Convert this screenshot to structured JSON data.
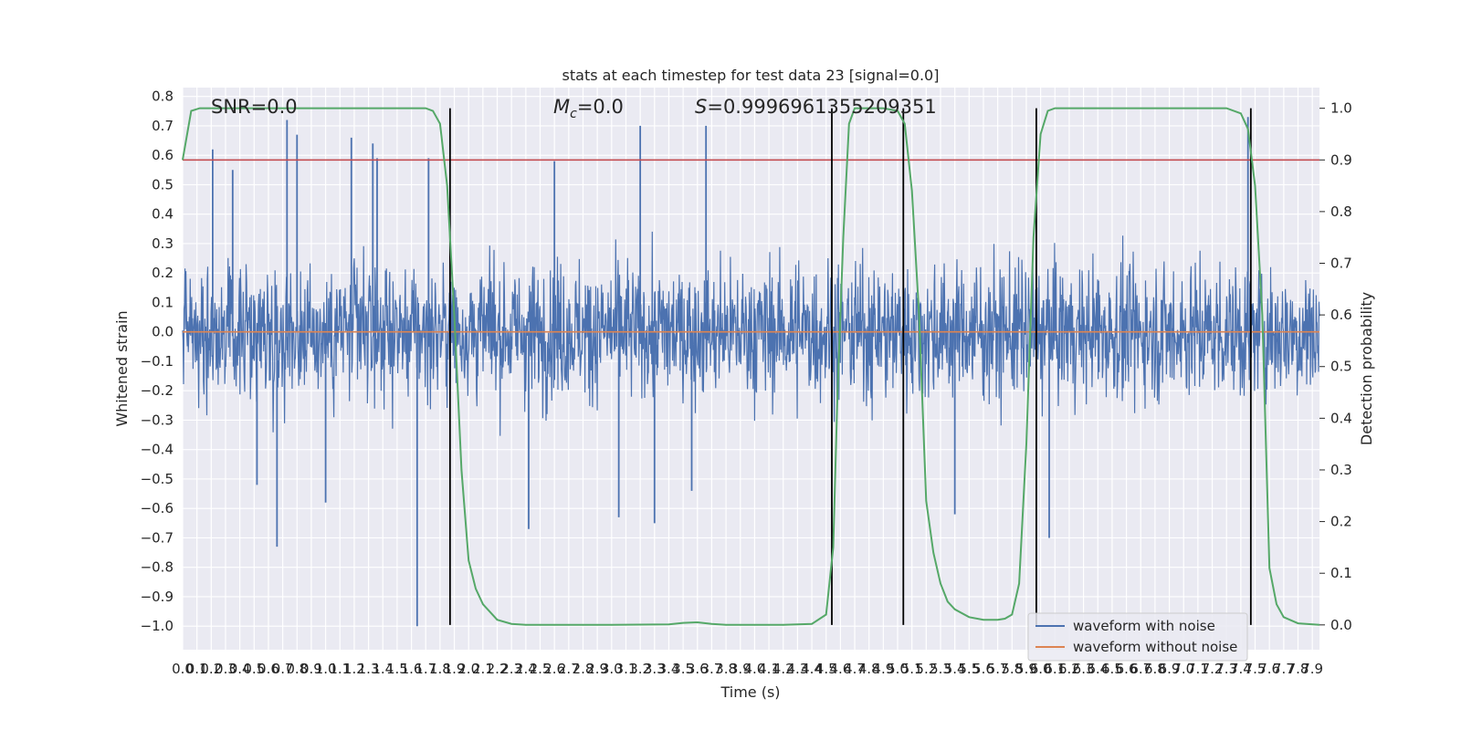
{
  "chart_data": {
    "type": "line",
    "title": "stats at each timestep for test data 23 [signal=0.0]",
    "xlabel": "Time (s)",
    "ylabel_left": "Whitened strain",
    "ylabel_right": "Detection probability",
    "xlim": [
      0.0,
      7.95
    ],
    "ylim_left": [
      -1.08,
      0.83
    ],
    "ylim_right": [
      -0.048,
      1.04
    ],
    "x_ticks": [
      "0.0",
      "0.1",
      "0.2",
      "0.3",
      "0.4",
      "0.5",
      "0.6",
      "0.7",
      "0.8",
      "0.9",
      "1.0",
      "1.1",
      "1.2",
      "1.3",
      "1.4",
      "1.5",
      "1.6",
      "1.7",
      "1.8",
      "1.9",
      "2.0",
      "2.1",
      "2.2",
      "2.3",
      "2.4",
      "2.5",
      "2.6",
      "2.7",
      "2.8",
      "2.9",
      "3.0",
      "3.1",
      "3.2",
      "3.3",
      "3.4",
      "3.5",
      "3.6",
      "3.7",
      "3.8",
      "3.9",
      "4.0",
      "4.1",
      "4.2",
      "4.3",
      "4.4",
      "4.5",
      "4.6",
      "4.7",
      "4.8",
      "4.9",
      "5.0",
      "5.1",
      "5.2",
      "5.3",
      "5.4",
      "5.5",
      "5.6",
      "5.7",
      "5.8",
      "5.9",
      "6.0",
      "6.1",
      "6.2",
      "6.3",
      "6.4",
      "6.5",
      "6.6",
      "6.7",
      "6.8",
      "6.9",
      "7.0",
      "7.1",
      "7.2",
      "7.3",
      "7.4",
      "7.5",
      "7.6",
      "7.7",
      "7.8",
      "7.9"
    ],
    "y_ticks_left": [
      "0.8",
      "0.7",
      "0.6",
      "0.5",
      "0.4",
      "0.3",
      "0.2",
      "0.1",
      "0.0",
      "−0.1",
      "−0.2",
      "−0.3",
      "−0.4",
      "−0.5",
      "−0.6",
      "−0.7",
      "−0.8",
      "−0.9",
      "−1.0"
    ],
    "y_ticks_right": [
      "1.0",
      "0.9",
      "0.8",
      "0.7",
      "0.6",
      "0.5",
      "0.4",
      "0.3",
      "0.2",
      "0.1",
      "0.0"
    ],
    "annotations": {
      "snr": "SNR=0.0",
      "mc_symbol": "M",
      "mc_subscript": "c",
      "mc_value": "=0.0",
      "s_symbol": "S",
      "s_value": "=0.9996961355209351"
    },
    "series": [
      {
        "name": "waveform with noise",
        "color": "#4c72b0",
        "note_values": "dense noise, roughly within ±0.45, extreme spikes listed below",
        "spikes": [
          {
            "x": 0.21,
            "y": 0.62
          },
          {
            "x": 0.35,
            "y": 0.55
          },
          {
            "x": 0.52,
            "y": -0.52
          },
          {
            "x": 0.66,
            "y": -0.73
          },
          {
            "x": 0.73,
            "y": 0.72
          },
          {
            "x": 0.8,
            "y": 0.67
          },
          {
            "x": 1.0,
            "y": -0.58
          },
          {
            "x": 1.18,
            "y": 0.66
          },
          {
            "x": 1.33,
            "y": 0.64
          },
          {
            "x": 1.36,
            "y": 0.59
          },
          {
            "x": 1.64,
            "y": -1.0
          },
          {
            "x": 1.72,
            "y": 0.59
          },
          {
            "x": 2.42,
            "y": -0.67
          },
          {
            "x": 2.6,
            "y": 0.58
          },
          {
            "x": 3.05,
            "y": -0.63
          },
          {
            "x": 3.2,
            "y": 0.7
          },
          {
            "x": 3.3,
            "y": -0.65
          },
          {
            "x": 3.56,
            "y": -0.54
          },
          {
            "x": 3.66,
            "y": 0.7
          },
          {
            "x": 6.06,
            "y": -0.7
          },
          {
            "x": 5.4,
            "y": -0.62
          },
          {
            "x": 7.45,
            "y": 0.73
          }
        ]
      },
      {
        "name": "waveform without noise",
        "color": "#dd8452",
        "x": [
          0.0,
          7.95
        ],
        "y": [
          0.0,
          0.0
        ]
      },
      {
        "name": "detection probability",
        "axis": "right",
        "color": "#55a868",
        "x": [
          0.0,
          0.06,
          0.12,
          0.2,
          0.4,
          1.0,
          1.6,
          1.7,
          1.75,
          1.8,
          1.85,
          1.9,
          1.95,
          2.0,
          2.05,
          2.1,
          2.15,
          2.2,
          2.3,
          2.4,
          2.6,
          3.0,
          3.4,
          3.5,
          3.6,
          3.7,
          3.8,
          4.2,
          4.4,
          4.5,
          4.55,
          4.58,
          4.62,
          4.66,
          4.7,
          4.8,
          4.9,
          5.0,
          5.05,
          5.1,
          5.15,
          5.2,
          5.25,
          5.3,
          5.35,
          5.4,
          5.5,
          5.6,
          5.7,
          5.75,
          5.8,
          5.85,
          5.9,
          5.95,
          6.0,
          6.05,
          6.1,
          6.2,
          6.5,
          7.0,
          7.3,
          7.4,
          7.45,
          7.5,
          7.55,
          7.6,
          7.65,
          7.7,
          7.8,
          7.95
        ],
        "y": [
          0.9,
          0.995,
          1.0,
          1.0,
          1.0,
          1.0,
          1.0,
          1.0,
          0.995,
          0.97,
          0.85,
          0.6,
          0.3,
          0.125,
          0.07,
          0.04,
          0.025,
          0.01,
          0.002,
          0.0,
          0.0,
          0.0,
          0.001,
          0.004,
          0.005,
          0.002,
          0.0,
          0.0,
          0.002,
          0.02,
          0.15,
          0.45,
          0.75,
          0.97,
          1.0,
          1.0,
          1.0,
          0.995,
          0.97,
          0.84,
          0.6,
          0.24,
          0.14,
          0.08,
          0.045,
          0.03,
          0.015,
          0.01,
          0.01,
          0.012,
          0.02,
          0.08,
          0.35,
          0.75,
          0.95,
          0.995,
          1.0,
          1.0,
          1.0,
          1.0,
          1.0,
          0.99,
          0.96,
          0.85,
          0.6,
          0.11,
          0.04,
          0.015,
          0.003,
          0.0
        ]
      }
    ],
    "threshold": {
      "axis": "right",
      "y": 0.9,
      "color": "#c44e52"
    },
    "vertical_lines": [
      1.87,
      4.54,
      5.04,
      5.97,
      7.47
    ],
    "legend": {
      "placement": "lower-right",
      "entries": [
        "waveform with noise",
        "waveform without noise"
      ]
    },
    "grid": true,
    "background": "#eaeaf2"
  }
}
